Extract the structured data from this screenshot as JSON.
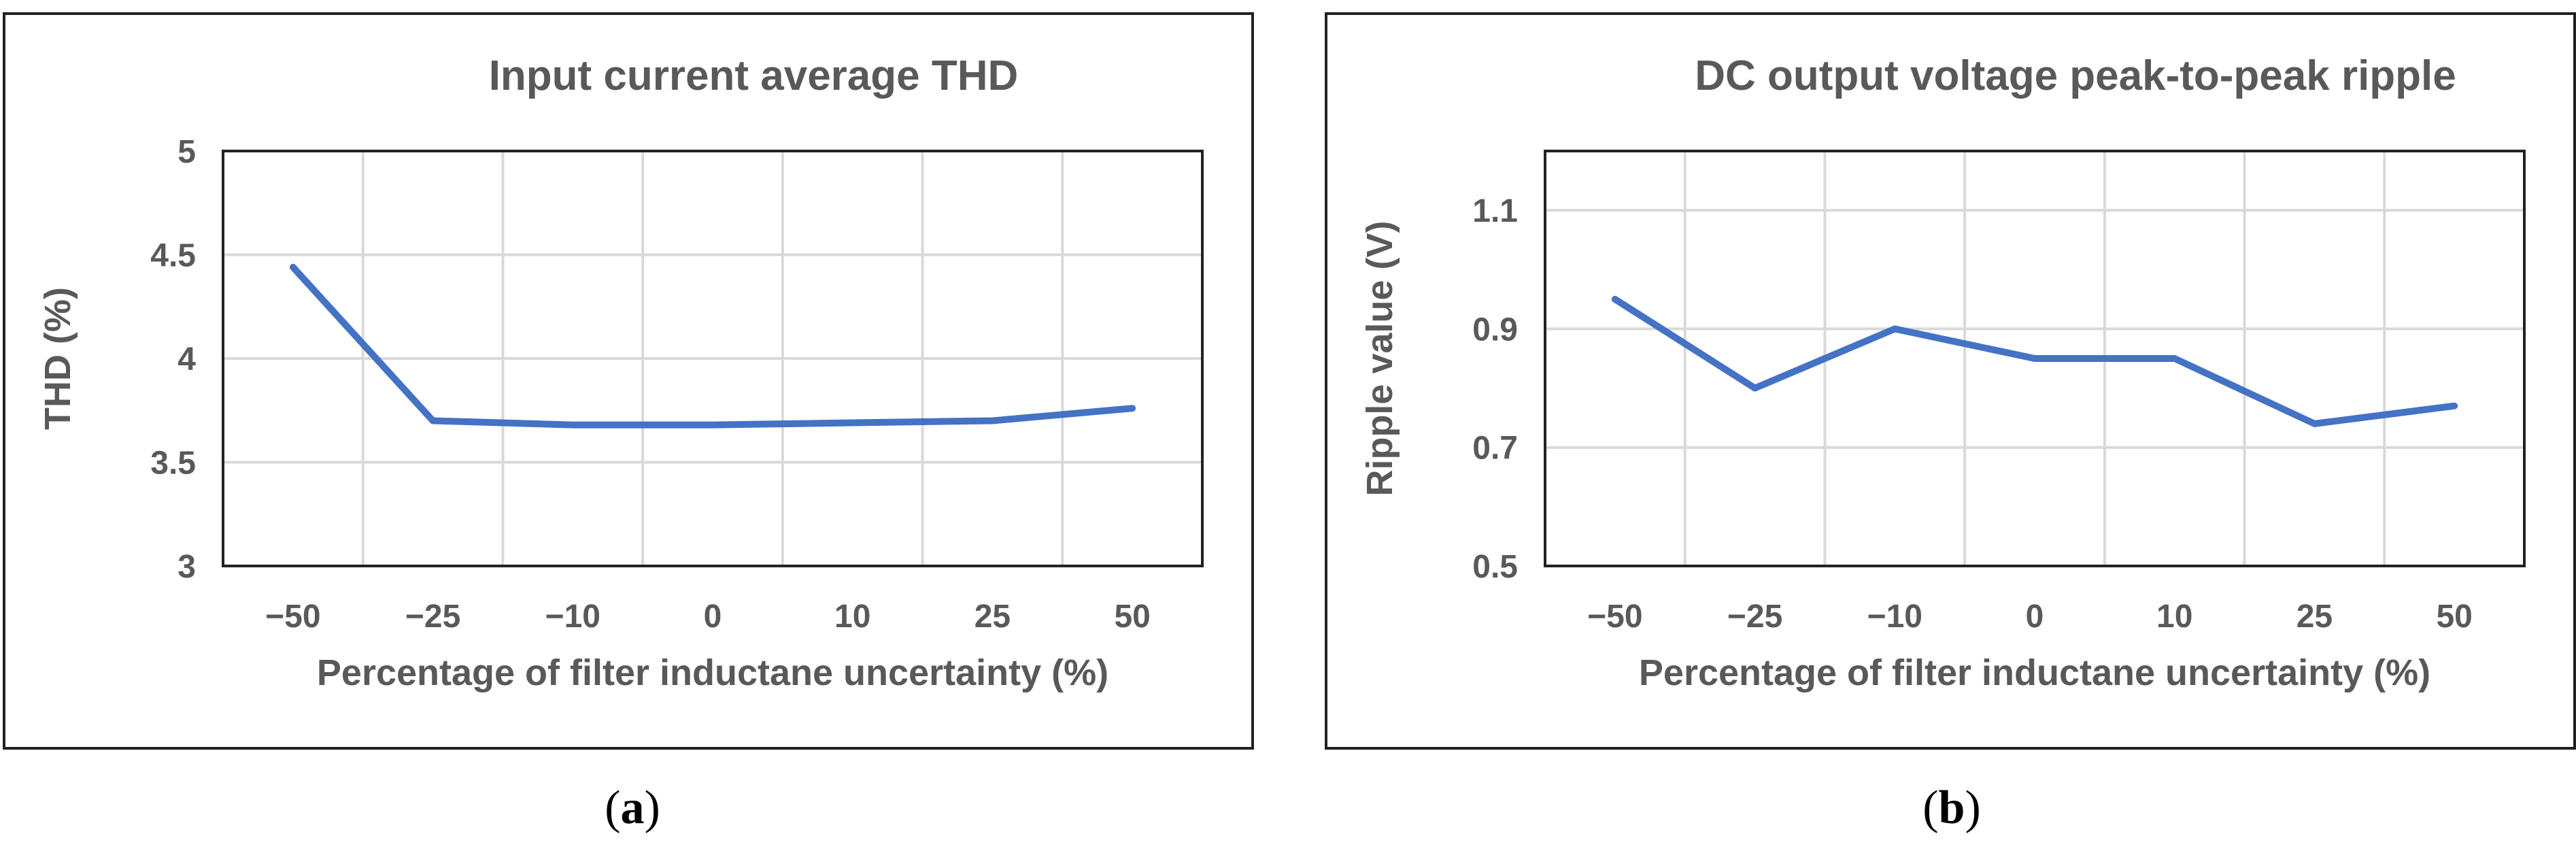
{
  "chart_data": [
    {
      "type": "line",
      "title": "Input current average THD",
      "xlabel": "Percentage of filter inductane uncertainty (%)",
      "ylabel": "THD (%)",
      "categories": [
        "−50",
        "−25",
        "−10",
        "0",
        "10",
        "25",
        "50"
      ],
      "series": [
        {
          "name": "THD",
          "values": [
            4.44,
            3.7,
            3.68,
            3.68,
            3.69,
            3.7,
            3.76
          ]
        }
      ],
      "ylim": [
        3,
        5
      ],
      "yticks": [
        3,
        3.5,
        4,
        4.5,
        5
      ],
      "ytick_labels": [
        "3",
        "3.5",
        "4",
        "4.5",
        "5"
      ],
      "caption_label": "a",
      "color": "#4472c4"
    },
    {
      "type": "line",
      "title": "DC output voltage peak-to-peak ripple",
      "xlabel": "Percentage of filter inductane uncertainty (%)",
      "ylabel": "Ripple value (V)",
      "categories": [
        "−50",
        "−25",
        "−10",
        "0",
        "10",
        "25",
        "50"
      ],
      "series": [
        {
          "name": "Ripple",
          "values": [
            0.95,
            0.8,
            0.9,
            0.85,
            0.85,
            0.74,
            0.77
          ]
        }
      ],
      "ylim": [
        0.5,
        1.2
      ],
      "yticks": [
        0.5,
        0.7,
        0.9,
        1.1
      ],
      "ytick_labels": [
        "0.5",
        "0.7",
        "0.9",
        "1.1"
      ],
      "caption_label": "b",
      "color": "#4472c4"
    }
  ]
}
